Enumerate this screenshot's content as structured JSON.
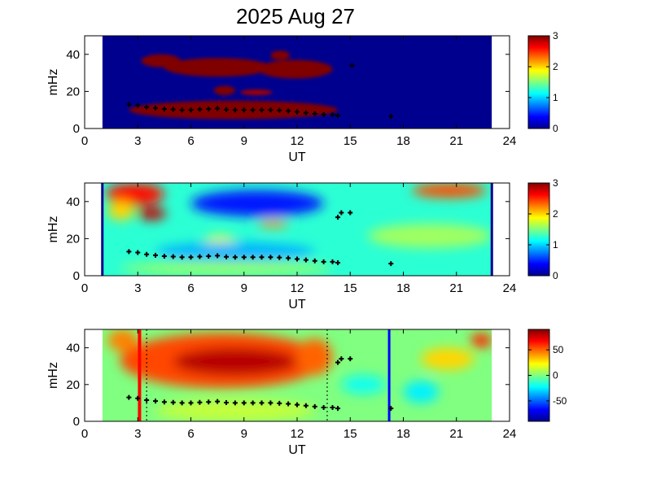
{
  "figure_title": "2025 Aug 27",
  "chart_data": [
    {
      "type": "heatmap",
      "xlabel": "UT",
      "ylabel": "mHz",
      "xlim": [
        0,
        24
      ],
      "ylim": [
        0,
        50
      ],
      "xticks": [
        0,
        3,
        6,
        9,
        12,
        15,
        18,
        21,
        24
      ],
      "yticks": [
        0,
        20,
        40
      ],
      "data_x_range": [
        1,
        23
      ],
      "colorbar": {
        "min": 0,
        "max": 3,
        "ticks": [
          0,
          1,
          2,
          3
        ]
      },
      "colormap": "jet",
      "background_level": 0,
      "blobs": [
        {
          "x": [
            4.5,
            10.5
          ],
          "y": [
            28,
            38
          ],
          "value": 3
        },
        {
          "x": [
            9.8,
            14
          ],
          "y": [
            27,
            37
          ],
          "value": 3
        },
        {
          "x": [
            3.2,
            5.4
          ],
          "y": [
            33,
            40
          ],
          "value": 3
        },
        {
          "x": [
            10.5,
            11.6
          ],
          "y": [
            37,
            42
          ],
          "value": 3
        },
        {
          "x": [
            7.3,
            8.5
          ],
          "y": [
            18,
            23
          ],
          "value": 3
        },
        {
          "x": [
            8.8,
            10.6
          ],
          "y": [
            18,
            21
          ],
          "value": 2.9
        },
        {
          "x": [
            2.5,
            14.3
          ],
          "y": [
            5,
            15
          ],
          "value": 3
        }
      ],
      "dots": [
        {
          "x": 15.1,
          "y": 34
        },
        {
          "x": 17.3,
          "y": 6.5
        }
      ]
    },
    {
      "type": "heatmap",
      "xlabel": "UT",
      "ylabel": "mHz",
      "xlim": [
        0,
        24
      ],
      "ylim": [
        0,
        50
      ],
      "xticks": [
        0,
        3,
        6,
        9,
        12,
        15,
        18,
        21,
        24
      ],
      "yticks": [
        0,
        20,
        40
      ],
      "data_x_range": [
        1,
        23
      ],
      "colorbar": {
        "min": 0,
        "max": 3,
        "ticks": [
          0,
          1,
          2,
          3
        ]
      },
      "colormap": "jet",
      "background_level": 1.25,
      "blobs": [
        {
          "x": [
            6,
            13.5
          ],
          "y": [
            32,
            46
          ],
          "value": 0.45
        },
        {
          "x": [
            1.2,
            4.5
          ],
          "y": [
            38,
            50
          ],
          "value": 2.6
        },
        {
          "x": [
            3,
            4.6
          ],
          "y": [
            30,
            37
          ],
          "value": 2.8
        },
        {
          "x": [
            18.5,
            22.7
          ],
          "y": [
            42,
            50
          ],
          "value": 2.4
        },
        {
          "x": [
            1.3,
            2.8
          ],
          "y": [
            30,
            40
          ],
          "value": 2.0
        },
        {
          "x": [
            9.8,
            11.5
          ],
          "y": [
            26,
            30
          ],
          "value": 2.2
        },
        {
          "x": [
            6.8,
            8.5
          ],
          "y": [
            16,
            22
          ],
          "value": 1.8
        },
        {
          "x": [
            2,
            14
          ],
          "y": [
            0,
            8
          ],
          "value": 1.55
        },
        {
          "x": [
            16,
            23
          ],
          "y": [
            15,
            28
          ],
          "value": 1.6
        },
        {
          "x": [
            4,
            13
          ],
          "y": [
            8,
            18
          ],
          "value": 0.9
        }
      ],
      "vlines": [
        {
          "x": 1,
          "color": "#00008f"
        },
        {
          "x": 23,
          "color": "#00008f"
        }
      ],
      "dots": [
        {
          "x": 14.3,
          "y": 31.5
        },
        {
          "x": 14.5,
          "y": 34
        },
        {
          "x": 15,
          "y": 34
        },
        {
          "x": 17.3,
          "y": 6.5
        }
      ]
    },
    {
      "type": "heatmap",
      "xlabel": "UT",
      "ylabel": "mHz",
      "xlim": [
        0,
        24
      ],
      "ylim": [
        0,
        50
      ],
      "xticks": [
        0,
        3,
        6,
        9,
        12,
        15,
        18,
        21,
        24
      ],
      "yticks": [
        0,
        20,
        40
      ],
      "data_x_range": [
        1,
        23
      ],
      "colorbar": {
        "min": -90,
        "max": 90,
        "ticks": [
          50,
          0,
          -50
        ]
      },
      "colormap": "jet",
      "background_level": 0,
      "blobs": [
        {
          "x": [
            2,
            13.6
          ],
          "y": [
            18,
            48
          ],
          "value": 55
        },
        {
          "x": [
            5,
            12
          ],
          "y": [
            25,
            40
          ],
          "value": 80
        },
        {
          "x": [
            1.3,
            3
          ],
          "y": [
            38,
            50
          ],
          "value": 45
        },
        {
          "x": [
            12,
            14
          ],
          "y": [
            25,
            45
          ],
          "value": 50
        },
        {
          "x": [
            19,
            22
          ],
          "y": [
            28,
            40
          ],
          "value": 30
        },
        {
          "x": [
            21.8,
            23
          ],
          "y": [
            40,
            48
          ],
          "value": 60
        },
        {
          "x": [
            14.5,
            17
          ],
          "y": [
            15,
            25
          ],
          "value": -20
        },
        {
          "x": [
            18,
            20
          ],
          "y": [
            10,
            22
          ],
          "value": -25
        },
        {
          "x": [
            4,
            13
          ],
          "y": [
            0,
            12
          ],
          "value": 12
        }
      ],
      "vlines": [
        {
          "x": 3.1,
          "color": "#ff0000",
          "width": 4
        },
        {
          "x": 17.2,
          "color": "#0000ff",
          "width": 3
        }
      ],
      "dashed_vlines": [
        3.5,
        13.7
      ],
      "dots": [
        {
          "x": 14.3,
          "y": 32
        },
        {
          "x": 14.5,
          "y": 34
        },
        {
          "x": 15,
          "y": 34
        },
        {
          "x": 17.3,
          "y": 7
        }
      ]
    }
  ],
  "ridge": {
    "x": [
      2.5,
      3,
      3.5,
      4,
      4.5,
      5,
      5.5,
      6,
      6.5,
      7,
      7.5,
      8,
      8.5,
      9,
      9.5,
      10,
      10.5,
      11,
      11.5,
      12,
      12.5,
      13,
      13.5,
      14,
      14.3
    ],
    "y": [
      13,
      12.5,
      11.5,
      11,
      10.5,
      10.3,
      10,
      10,
      10.3,
      10.5,
      10.8,
      10.2,
      10,
      10,
      10,
      10,
      10,
      9.8,
      9.5,
      9,
      8.5,
      8,
      7.5,
      7.5,
      7
    ]
  }
}
